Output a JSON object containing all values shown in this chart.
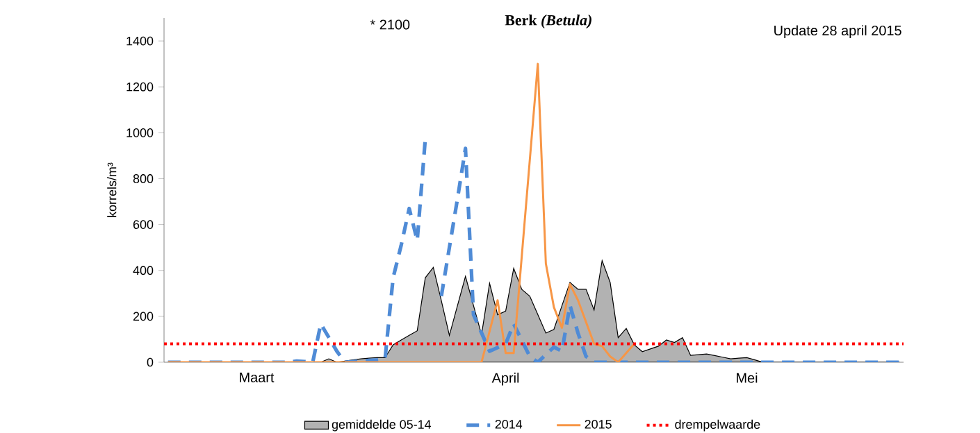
{
  "chart_data": {
    "type": "line",
    "title": "Berk *(Betula)*",
    "ylabel": "korrels/m³",
    "annotations": [
      "* 2100",
      "Update 28 april 2015"
    ],
    "categories": [
      null,
      null,
      null,
      null,
      null,
      null,
      null,
      null,
      null,
      null,
      null,
      "Maart",
      null,
      null,
      null,
      null,
      null,
      null,
      null,
      null,
      null,
      null,
      null,
      null,
      null,
      null,
      null,
      null,
      null,
      null,
      null,
      null,
      null,
      null,
      null,
      null,
      null,
      null,
      null,
      null,
      null,
      null,
      "April",
      null,
      null,
      null,
      null,
      null,
      null,
      null,
      null,
      null,
      null,
      null,
      null,
      null,
      null,
      null,
      null,
      null,
      null,
      null,
      null,
      null,
      null,
      null,
      null,
      null,
      null,
      null,
      null,
      null,
      "Mei",
      null,
      null,
      null,
      null,
      null,
      null,
      null,
      null,
      null,
      null,
      null,
      null,
      null,
      null,
      null,
      null,
      null,
      null,
      null
    ],
    "ylim": [
      0,
      1500
    ],
    "yticks": [
      0,
      200,
      400,
      600,
      800,
      1000,
      1200,
      1400
    ],
    "legend": "bottom",
    "series": [
      {
        "name": "gemiddelde 05-14",
        "type": "area",
        "color": "#000000",
        "values": [
          0,
          0,
          0,
          0,
          0,
          0,
          0,
          0,
          0,
          0,
          0,
          0,
          0,
          0,
          0,
          0,
          0,
          0,
          0,
          0,
          15,
          0,
          5,
          10,
          15,
          18,
          20,
          20,
          76,
          97,
          117,
          137,
          368,
          413,
          268,
          117,
          246,
          374,
          247,
          120,
          344,
          207,
          223,
          409,
          318,
          288,
          208,
          127,
          143,
          246,
          348,
          318,
          318,
          228,
          443,
          348,
          107,
          147,
          76,
          46,
          58,
          70,
          97,
          86,
          107,
          30,
          33,
          36,
          29,
          22,
          15,
          18,
          20,
          10,
          0,
          0,
          0,
          0,
          0,
          0,
          0,
          0,
          0,
          0,
          0,
          0,
          0,
          0,
          0,
          0,
          0,
          0
        ]
      },
      {
        "name": "2014",
        "line_style": "dashed",
        "color": "#4f8bd6",
        "values": [
          0,
          0,
          0,
          0,
          0,
          0,
          0,
          0,
          0,
          0,
          0,
          0,
          0,
          0,
          0,
          0,
          5,
          3,
          0,
          167,
          108,
          48,
          0,
          3,
          5,
          8,
          10,
          15,
          368,
          509,
          670,
          530,
          972,
          null,
          288,
          500,
          711,
          932,
          207,
          128,
          48,
          64,
          80,
          167,
          96,
          25,
          0,
          33,
          66,
          48,
          248,
          127,
          25,
          0,
          0,
          0,
          0,
          0,
          0,
          0,
          0,
          0,
          0,
          0,
          0,
          0,
          0,
          0,
          0,
          0,
          0,
          0,
          0,
          0,
          0,
          0,
          0,
          0,
          0,
          0,
          0,
          0,
          0,
          0,
          0,
          0,
          0,
          0,
          0,
          0,
          0,
          0
        ]
      },
      {
        "name": "2015",
        "line_style": "solid",
        "color": "#f79646",
        "values": [
          0,
          0,
          0,
          0,
          0,
          0,
          0,
          0,
          0,
          0,
          0,
          0,
          0,
          0,
          0,
          0,
          0,
          0,
          0,
          0,
          0,
          0,
          0,
          0,
          0,
          0,
          0,
          0,
          0,
          0,
          0,
          0,
          0,
          0,
          0,
          0,
          0,
          0,
          0,
          0,
          135,
          270,
          40,
          40,
          460,
          880,
          1300,
          430,
          240,
          150,
          340,
          270,
          175,
          80,
          70,
          25,
          0,
          40,
          80,
          null,
          null,
          null,
          null,
          null,
          null,
          null,
          null,
          null,
          null,
          null,
          null,
          null,
          null,
          null,
          null,
          null,
          null,
          null,
          null,
          null,
          null,
          null,
          null,
          null,
          null,
          null,
          null,
          null,
          null,
          null,
          null,
          null
        ]
      }
    ],
    "ref_lines": [
      {
        "axis": "y",
        "value": 80,
        "label": "drempelwaarde",
        "color": "#ff0000",
        "line_style": "dotted"
      }
    ]
  }
}
